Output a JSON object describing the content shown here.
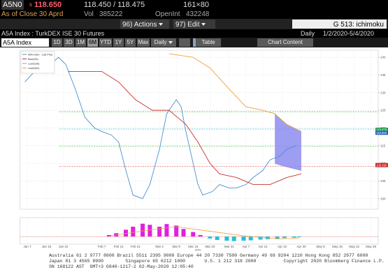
{
  "header": {
    "ticker": "A5N0",
    "price_prefix": "s",
    "price": "118.650",
    "bid_ask": "118.450 / 118.475",
    "size": "161×80",
    "as_of": "As of Close 30 Aprd",
    "vol_label": "Vol",
    "vol": "385222",
    "oi_label": "OpenInt",
    "oi": "432248"
  },
  "toolbar": {
    "actions_num": "96)",
    "actions": "Actions",
    "edit_num": "97)",
    "edit": "Edit",
    "function": "G 513: ichimoku"
  },
  "security": {
    "name": "A5A Index : TurkDEX ISE 30 Futures",
    "period": "Daily",
    "range": "1/2/2020-5/4/2020"
  },
  "controls": {
    "input": "A5A Index",
    "buttons": [
      "1D",
      "3D",
      "1M",
      "6M",
      "YTD",
      "1Y",
      "5Y",
      "Max"
    ],
    "selected": "6M",
    "frequency": "Daily",
    "table": "Table",
    "chart_content": "Chart Content"
  },
  "chart_data": {
    "type": "line",
    "xlim": [
      "2020-01-04",
      "2020-06-01"
    ],
    "xticks": [
      {
        "value": "2020-01-07",
        "label": "Jan 7"
      },
      {
        "value": "2020-01-15",
        "label": "Jan 15"
      },
      {
        "value": "2020-01-22",
        "label": "Jan 22"
      },
      {
        "value": "2020-02-07",
        "label": "Feb 7"
      },
      {
        "value": "2020-02-14",
        "label": "Feb 14"
      },
      {
        "value": "2020-02-21",
        "label": "Feb 21"
      },
      {
        "value": "2020-03-02",
        "label": "Mar 2"
      },
      {
        "value": "2020-03-09",
        "label": "Mar 9"
      },
      {
        "value": "2020-03-16",
        "label": "Mar 16"
      },
      {
        "value": "2020-03-23",
        "label": "Mar 23"
      },
      {
        "value": "2020-03-31",
        "label": "Mar 31"
      },
      {
        "value": "2020-04-07",
        "label": "Apr 7"
      },
      {
        "value": "2020-04-14",
        "label": "Apr 14"
      },
      {
        "value": "2020-04-22",
        "label": "Apr 22"
      },
      {
        "value": "2020-04-30",
        "label": "Apr 30"
      },
      {
        "value": "2020-05-08",
        "label": "May 8"
      },
      {
        "value": "2020-05-15",
        "label": "May 15"
      },
      {
        "value": "2020-05-22",
        "label": "May 22"
      },
      {
        "value": "2020-05-29",
        "label": "May 29"
      }
    ],
    "x_year": {
      "value": "2020-03-18",
      "label": "2020"
    },
    "ylim": [
      97,
      142
    ],
    "yticks": [
      100,
      105,
      110,
      115,
      120,
      125,
      130,
      135,
      140
    ],
    "grid": true,
    "series": [
      {
        "name": "A5A Index - Last Price",
        "color": "#4a90d0",
        "x": [
          "2020-01-06",
          "2020-01-10",
          "2020-01-15",
          "2020-01-20",
          "2020-01-23",
          "2020-01-27",
          "2020-01-31",
          "2020-02-04",
          "2020-02-07",
          "2020-02-11",
          "2020-02-14",
          "2020-02-17",
          "2020-02-20",
          "2020-02-24",
          "2020-02-27",
          "2020-03-02",
          "2020-03-05",
          "2020-03-09",
          "2020-03-11",
          "2020-03-13",
          "2020-03-16",
          "2020-03-18",
          "2020-03-20",
          "2020-03-24",
          "2020-03-27",
          "2020-03-31",
          "2020-04-03",
          "2020-04-07",
          "2020-04-10",
          "2020-04-14",
          "2020-04-17",
          "2020-04-21",
          "2020-04-24",
          "2020-04-28"
        ],
        "values": [
          133,
          136,
          137,
          140,
          138,
          131,
          123,
          120,
          119,
          118,
          116,
          108,
          101,
          100,
          104,
          114,
          124,
          128,
          126,
          119,
          110,
          104,
          101,
          102,
          104,
          103,
          103,
          104,
          106,
          108,
          111,
          112,
          114,
          115
        ]
      },
      {
        "name": "Base(26)",
        "color": "#c83030",
        "x": [
          "2020-01-24",
          "2020-02-07",
          "2020-02-14",
          "2020-02-21",
          "2020-02-28",
          "2020-03-06",
          "2020-03-13",
          "2020-03-18",
          "2020-03-23",
          "2020-03-27",
          "2020-04-03",
          "2020-04-10",
          "2020-04-17",
          "2020-04-24",
          "2020-04-30"
        ],
        "values": [
          136,
          136,
          133,
          128,
          125,
          125,
          121,
          116,
          110,
          107,
          106,
          104,
          104,
          106,
          107
        ]
      },
      {
        "name": "Lead1(26)",
        "color": "#9090f0",
        "x": [
          "2020-04-19",
          "2020-04-24",
          "2020-04-30"
        ],
        "values": [
          110,
          109,
          108
        ]
      },
      {
        "name": "Lead2(52)",
        "color": "#f0a040",
        "x": [
          "2020-03-06",
          "2020-03-16",
          "2020-03-23",
          "2020-03-31",
          "2020-04-07",
          "2020-04-14",
          "2020-04-19",
          "2020-04-24",
          "2020-04-30"
        ],
        "values": [
          141,
          140,
          137,
          131,
          126,
          125,
          124,
          121,
          119
        ]
      }
    ],
    "cloud_color": "#8c8cf0",
    "levels": [
      {
        "value": 124.6,
        "color": "#30c030"
      },
      {
        "value": 119.7,
        "color": "#40c8e0"
      },
      {
        "value": 114.8,
        "color": "#30c030"
      },
      {
        "value": 109.1,
        "color": "#e05050"
      }
    ],
    "value_boxes": [
      {
        "value": 119.479,
        "label": "119.479",
        "color": "#1a9e3a"
      },
      {
        "value": 118.65,
        "label": "118.650",
        "color": "#2060c0"
      },
      {
        "value": 109.5,
        "label": "109.500",
        "color": "#d02020"
      }
    ],
    "macd": {
      "ylim": [
        -2,
        5
      ],
      "positive_color": "#e020e0",
      "negative_color": "#20c0e0",
      "x": [
        "2020-02-10",
        "2020-02-13",
        "2020-02-17",
        "2020-02-20",
        "2020-02-24",
        "2020-02-27",
        "2020-03-02",
        "2020-03-05",
        "2020-03-09",
        "2020-03-12",
        "2020-03-16",
        "2020-03-19",
        "2020-03-23",
        "2020-03-26",
        "2020-03-30",
        "2020-04-02",
        "2020-04-06",
        "2020-04-09",
        "2020-04-13",
        "2020-04-16",
        "2020-04-20",
        "2020-04-23",
        "2020-04-27",
        "2020-04-29"
      ],
      "values": [
        0.4,
        0.9,
        1.8,
        2.6,
        3.4,
        3.1,
        2.6,
        3.3,
        2.9,
        2.0,
        1.2,
        0.4,
        -0.5,
        -0.9,
        -1.1,
        -1.2,
        -1.1,
        -1.0,
        -0.8,
        -0.7,
        -0.6,
        -0.4,
        -0.3,
        -0.2
      ],
      "signal": {
        "color": "#f0a040",
        "x": [
          "2020-02-10",
          "2020-02-24",
          "2020-03-09",
          "2020-03-23",
          "2020-04-06",
          "2020-04-20",
          "2020-04-29"
        ],
        "values": [
          0.1,
          1.5,
          2.6,
          1.4,
          0.2,
          -0.6,
          -0.5
        ]
      }
    }
  },
  "footer": {
    "lines": [
      "Australia 61 2 9777 8600 Brazil 5511 2395 9000 Europe 44 20 7330 7500 Germany 49 69 9204 1210 Hong Kong 852 2977 6000",
      "Japan 81 3 4565 8900        Singapore 65 6212 1000       U.S. 1 212 318 2000          Copyright 2020 Bloomberg Finance L.P.",
      "SN 168122 AST  GMT+3 G840-1217-2 02-May-2020 12:05:40"
    ]
  }
}
